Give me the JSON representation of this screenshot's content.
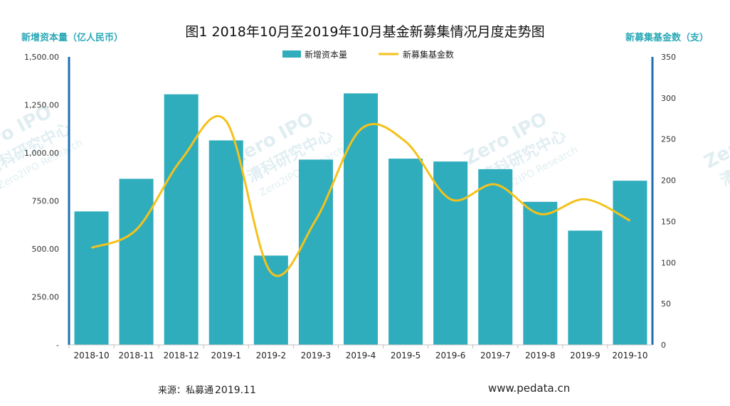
{
  "chart_data": {
    "type": "bar",
    "title": "图1  2018年10月至2019年10月基金新募集情况月度走势图",
    "categories": [
      "2018-10",
      "2018-11",
      "2018-12",
      "2019-1",
      "2019-2",
      "2019-3",
      "2019-4",
      "2019-5",
      "2019-6",
      "2019-7",
      "2019-8",
      "2019-9",
      "2019-10"
    ],
    "ylabel": "新增资本量（亿人民币）",
    "y2label": "新募集基金数（支）",
    "ylim": [
      0,
      1500
    ],
    "y2lim": [
      0,
      350
    ],
    "yticks": [
      "-",
      "250.00",
      "500.00",
      "750.00",
      "1,000.00",
      "1,250.00",
      "1,500.00"
    ],
    "y2ticks": [
      "0",
      "50",
      "100",
      "150",
      "200",
      "250",
      "300",
      "350"
    ],
    "legend_position": "top-center",
    "series": [
      {
        "name": "新增资本量",
        "type": "bar",
        "axis": "left",
        "color": "#2fadbd",
        "values": [
          695,
          865,
          1305,
          1065,
          465,
          965,
          1310,
          970,
          955,
          915,
          745,
          595,
          855
        ]
      },
      {
        "name": "新募集基金数",
        "type": "line",
        "axis": "right",
        "color": "#f5c21b",
        "values": [
          118,
          140,
          225,
          272,
          88,
          152,
          262,
          247,
          177,
          195,
          159,
          177,
          151
        ]
      }
    ]
  },
  "watermark": {
    "brand": "Zero IPO",
    "cn": "清科研究中心",
    "en": "Zero2IPO Research"
  },
  "footer": {
    "source_label": "来源：私募通",
    "source_year": "2019.11",
    "website": "www.pedata.cn"
  }
}
